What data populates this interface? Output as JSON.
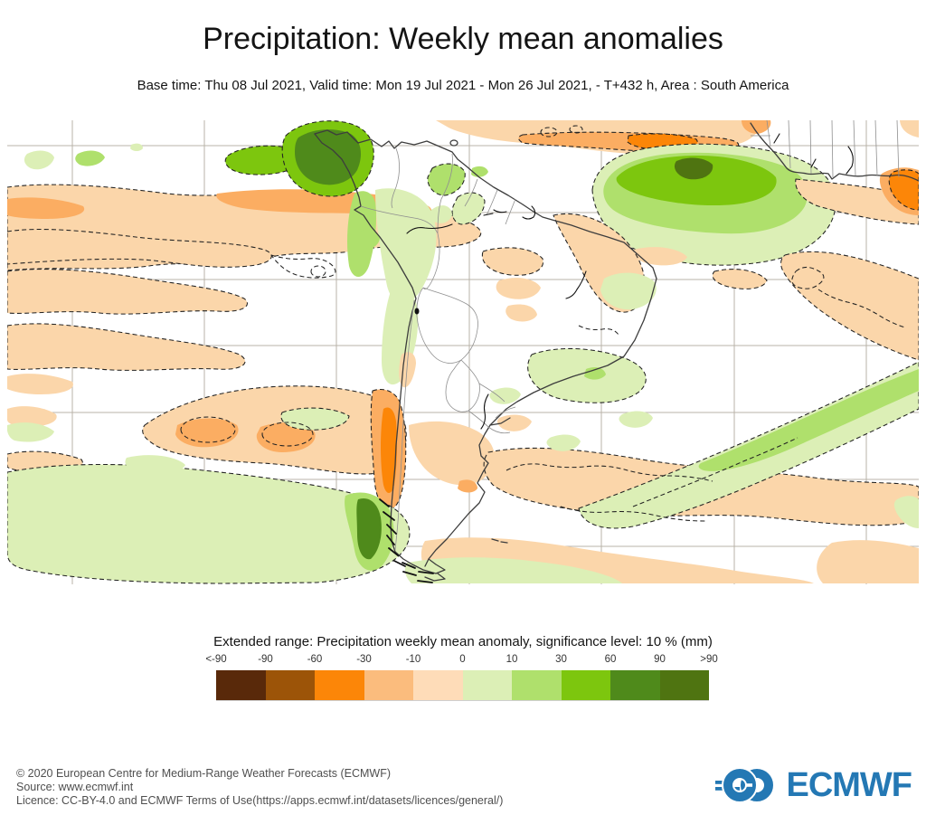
{
  "header": {
    "title": "Precipitation: Weekly mean anomalies",
    "subtitle": "Base time: Thu 08 Jul 2021, Valid time: Mon 19 Jul 2021 - Mon 26 Jul 2021, - T+432 h, Area : South America"
  },
  "map": {
    "area": "South America",
    "variable": "Precipitation weekly mean anomaly (mm)",
    "positive_anomaly": "green shades (wetter than normal)",
    "negative_anomaly": "orange/brown shades (drier than normal)",
    "significance": "dashed black contours enclose areas significant at the 10 % level",
    "notable_features": [
      "strong positive anomaly (green, 30 to >90 mm) over Colombia / western Venezuela",
      "large positive anomaly (10-90 mm) over tropical North Atlantic north of Brazil",
      "negative anomaly band (-10 to -60 mm) along equatorial Atlantic near 5N",
      "broad weak negative anomalies over subtropical South Pacific and off Chile (-10 to -60 mm)",
      "strong negative strip (-30 to -60 mm) along central Chile coast",
      "positive anomalies (10 to >60 mm) over southern Chile / Patagonia and far South Pacific",
      "positive anomaly band (10-60 mm) stretching southwest-northeast across the South Atlantic",
      "weak negative anomalies (-10 to -30 mm) over Argentina and the mid-latitude South Atlantic",
      "strong negative anomaly (-30 to -90 mm) near the West African coast at the eastern map edge"
    ]
  },
  "legend": {
    "title": "Extended range: Precipitation weekly mean anomaly, significance level: 10 % (mm)",
    "ticks": [
      "<-90",
      "-90",
      "-60",
      "-30",
      "-10",
      "0",
      "10",
      "30",
      "60",
      "90",
      ">90"
    ],
    "colors": [
      "#59290A",
      "#9C5408",
      "#FC8608",
      "#FBBC7D",
      "#FEDCB8",
      "#DCEFB6",
      "#AFE06C",
      "#7DC60E",
      "#4F8A1B",
      "#4F7411"
    ]
  },
  "footer": {
    "lines": [
      "© 2020 European Centre for Medium-Range Weather Forecasts (ECMWF)",
      "Source: www.ecmwf.int",
      "Licence: CC-BY-4.0 and ECMWF Terms of Use(https://apps.ecmwf.int/datasets/licences/general/)"
    ]
  },
  "logo": {
    "text": "ECMWF",
    "color": "#2478B4"
  }
}
